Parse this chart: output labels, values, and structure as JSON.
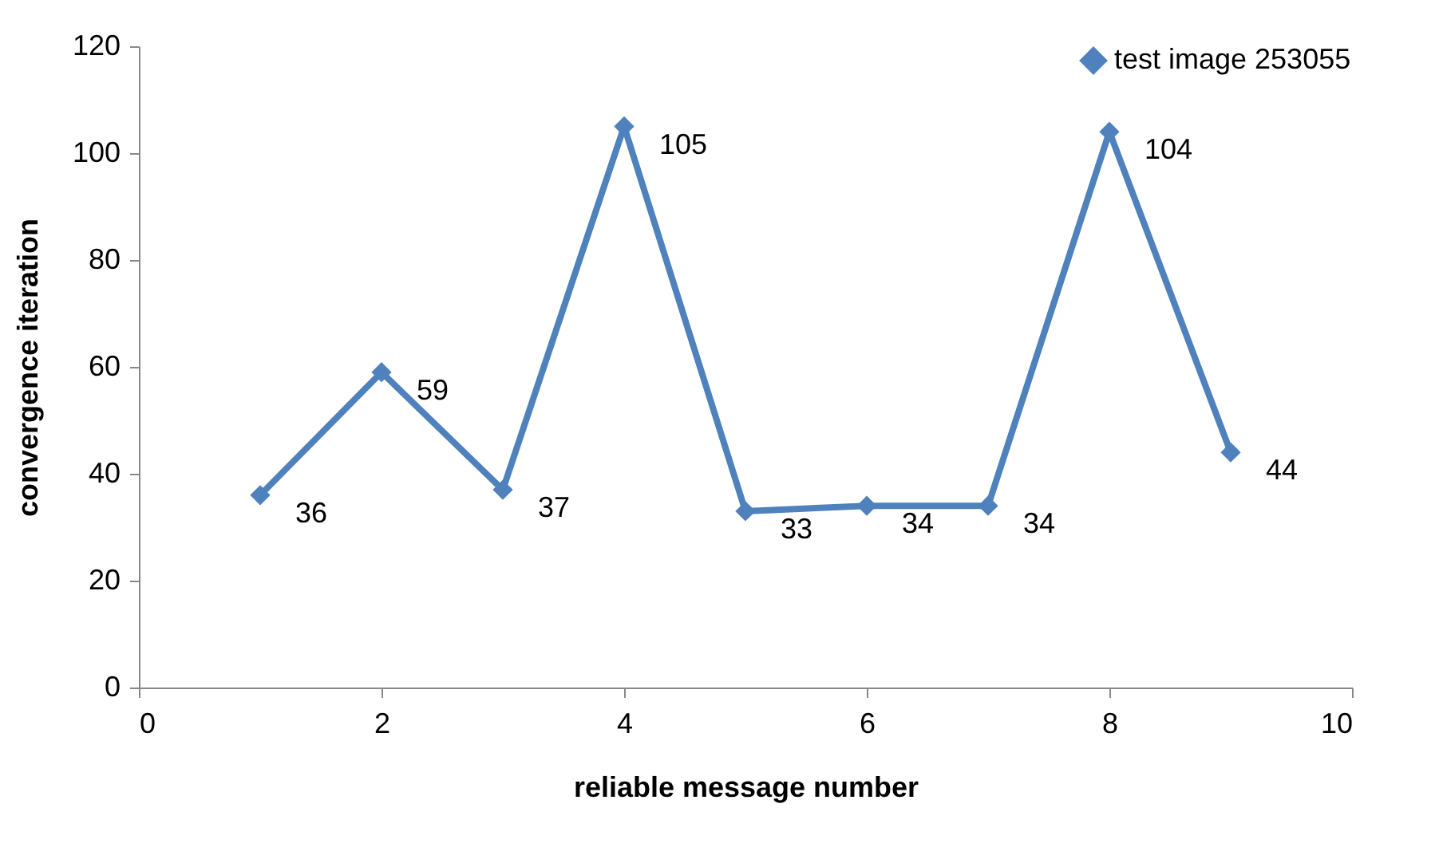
{
  "chart_data": {
    "type": "line",
    "xlabel": "reliable message number",
    "ylabel": "convergence iteration",
    "x": [
      1,
      2,
      3,
      4,
      5,
      6,
      7,
      8,
      9
    ],
    "series": [
      {
        "name": "test image 253055",
        "color": "#4f81bd",
        "values": [
          36,
          59,
          37,
          105,
          33,
          34,
          34,
          104,
          44
        ]
      }
    ],
    "xlim": [
      0,
      10
    ],
    "xticks": [
      0,
      2,
      4,
      6,
      8,
      10
    ],
    "ylim": [
      0,
      120
    ],
    "yticks": [
      0,
      20,
      40,
      60,
      80,
      100,
      120
    ],
    "grid": false,
    "legend": "top right",
    "marker": "diamond",
    "line_style": "solid",
    "data_labels": true
  }
}
